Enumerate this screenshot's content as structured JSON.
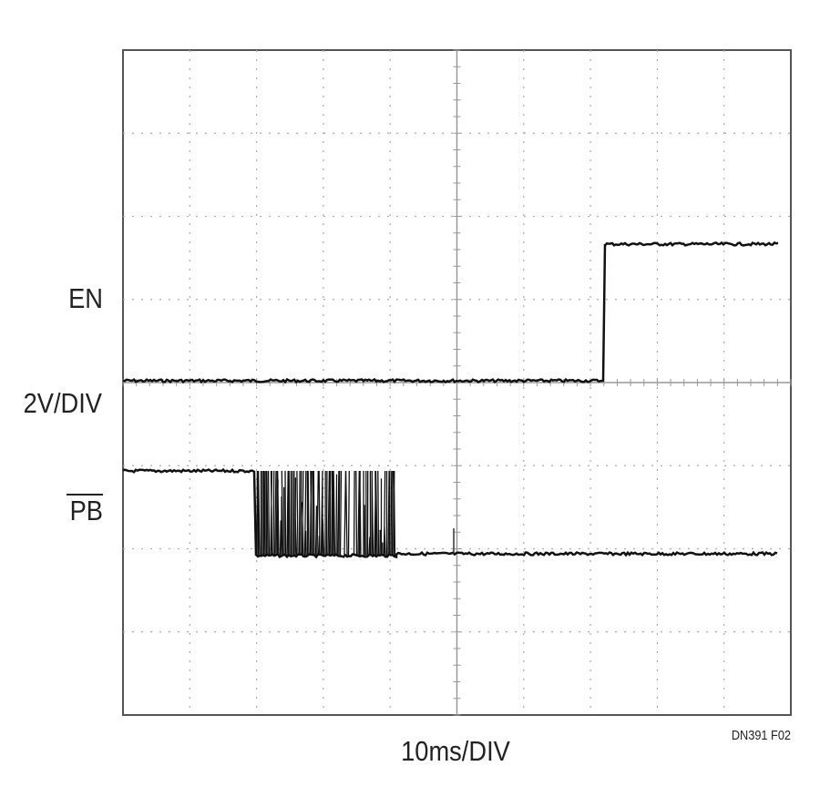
{
  "labels": {
    "en": "EN",
    "scale_v": "2V/DIV",
    "pb": "PB",
    "scale_t": "10ms/DIV",
    "figure_id": "DN391 F02"
  }
}
